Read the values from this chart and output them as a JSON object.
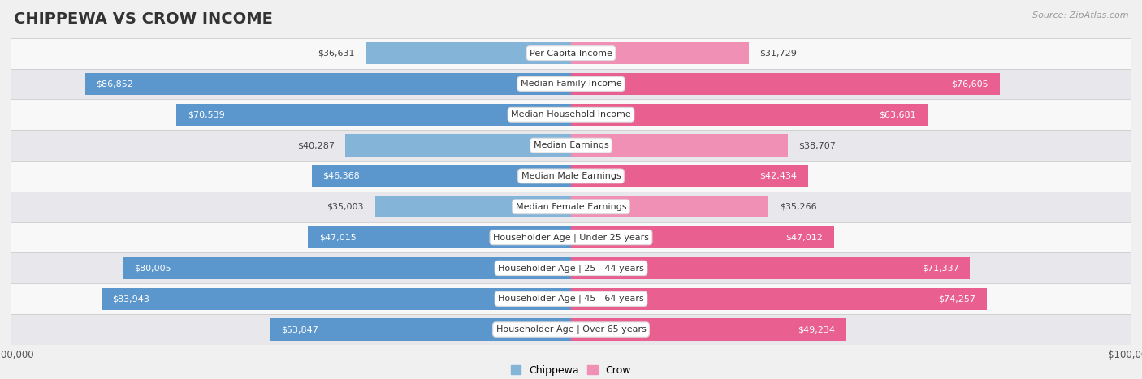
{
  "title": "CHIPPEWA VS CROW INCOME",
  "source": "Source: ZipAtlas.com",
  "categories": [
    "Per Capita Income",
    "Median Family Income",
    "Median Household Income",
    "Median Earnings",
    "Median Male Earnings",
    "Median Female Earnings",
    "Householder Age | Under 25 years",
    "Householder Age | 25 - 44 years",
    "Householder Age | 45 - 64 years",
    "Householder Age | Over 65 years"
  ],
  "chippewa_values": [
    36631,
    86852,
    70539,
    40287,
    46368,
    35003,
    47015,
    80005,
    83943,
    53847
  ],
  "crow_values": [
    31729,
    76605,
    63681,
    38707,
    42434,
    35266,
    47012,
    71337,
    74257,
    49234
  ],
  "chippewa_labels": [
    "$36,631",
    "$86,852",
    "$70,539",
    "$40,287",
    "$46,368",
    "$35,003",
    "$47,015",
    "$80,005",
    "$83,943",
    "$53,847"
  ],
  "crow_labels": [
    "$31,729",
    "$76,605",
    "$63,681",
    "$38,707",
    "$42,434",
    "$35,266",
    "$47,012",
    "$71,337",
    "$74,257",
    "$49,234"
  ],
  "chippewa_color": "#85b4d9",
  "crow_color": "#f090b4",
  "chippewa_color_strong": "#5b96cc",
  "crow_color_strong": "#e85f90",
  "axis_limit": 100000,
  "background_color": "#f0f0f0",
  "row_color_odd": "#f8f8f8",
  "row_color_even": "#e8e8ec",
  "row_separator": "#cccccc",
  "title_fontsize": 14,
  "label_fontsize": 8,
  "legend_fontsize": 9,
  "inside_label_threshold": 42000
}
